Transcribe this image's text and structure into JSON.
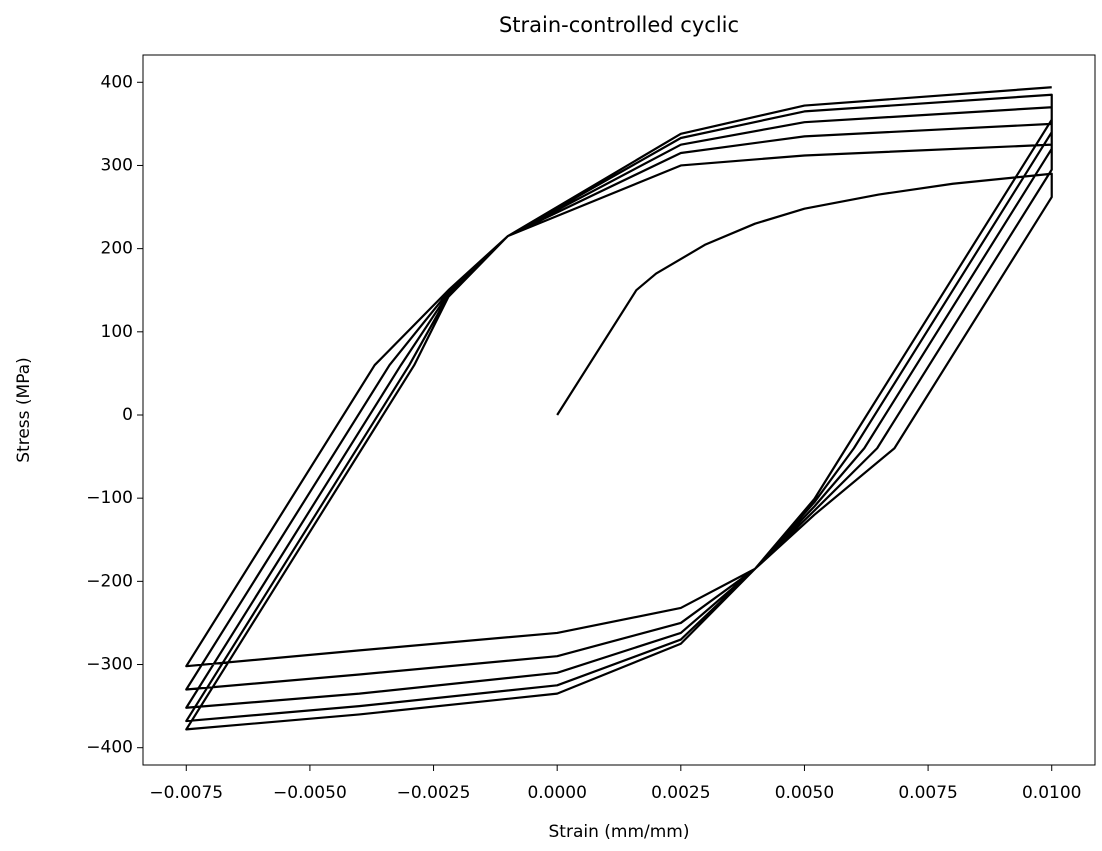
{
  "chart_data": {
    "type": "line",
    "title": "Strain-controlled cyclic",
    "xlabel": "Strain (mm/mm)",
    "ylabel": "Stress (MPa)",
    "x": [
      0,
      0.0016,
      0.002,
      0.003,
      0.004,
      0.005,
      0.0065,
      0.008,
      0.01,
      0.01,
      0.00682,
      0.0052,
      0.004,
      0.0025,
      0,
      -0.004,
      -0.0075,
      -0.00369,
      -0.0022,
      -0.001,
      0.0025,
      0.005,
      0.01,
      0.01,
      0.00647,
      0.0052,
      0.004,
      0.0025,
      0,
      -0.004,
      -0.0075,
      -0.00339,
      -0.0022,
      -0.001,
      0.0025,
      0.005,
      0.01,
      0.01,
      0.00621,
      0.0052,
      0.004,
      0.0025,
      0,
      -0.004,
      -0.0075,
      -0.00316,
      -0.0022,
      -0.001,
      0.0025,
      0.005,
      0.01,
      0.01,
      0.006,
      0.0052,
      0.004,
      0.0025,
      0,
      -0.004,
      -0.0075,
      -0.00299,
      -0.0022,
      -0.001,
      0.0025,
      0.005,
      0.01,
      0.01,
      0.00584,
      0.0052,
      0.004,
      0.0025,
      0,
      -0.004,
      -0.0075,
      -0.00289,
      -0.0022,
      -0.001,
      0.0025,
      0.005,
      0.01
    ],
    "series": [
      {
        "color": "#000000",
        "values": [
          0,
          150,
          170,
          205,
          230,
          248,
          265,
          278,
          290,
          262,
          -40,
          -120,
          -185,
          -232,
          -262,
          -283,
          -302,
          60,
          150,
          215,
          300,
          312,
          325,
          295,
          -40,
          -115,
          -185,
          -250,
          -290,
          -312,
          -330,
          60,
          148,
          215,
          315,
          335,
          350,
          320,
          -40,
          -110,
          -185,
          -262,
          -310,
          -335,
          -352,
          60,
          146,
          215,
          325,
          352,
          370,
          340,
          -40,
          -105,
          -185,
          -270,
          -325,
          -350,
          -368,
          60,
          144,
          215,
          333,
          365,
          385,
          355,
          -40,
          -101,
          -185,
          -275,
          -335,
          -360,
          -378,
          60,
          142,
          215,
          338,
          372,
          394
        ]
      }
    ],
    "xlim": [
      -0.008375,
      0.010875
    ],
    "ylim": [
      -420.8,
      432.8
    ],
    "xticks": [
      {
        "value": -0.0075,
        "label": "−0.0075"
      },
      {
        "value": -0.005,
        "label": "−0.0050"
      },
      {
        "value": -0.0025,
        "label": "−0.0025"
      },
      {
        "value": 0,
        "label": "0.0000"
      },
      {
        "value": 0.0025,
        "label": "0.0025"
      },
      {
        "value": 0.005,
        "label": "0.0050"
      },
      {
        "value": 0.0075,
        "label": "0.0075"
      },
      {
        "value": 0.01,
        "label": "0.0100"
      }
    ],
    "yticks": [
      {
        "value": -400,
        "label": "−400"
      },
      {
        "value": -300,
        "label": "−300"
      },
      {
        "value": -200,
        "label": "−200"
      },
      {
        "value": -100,
        "label": "−100"
      },
      0,
      100,
      200,
      300,
      400
    ],
    "grid": false
  }
}
